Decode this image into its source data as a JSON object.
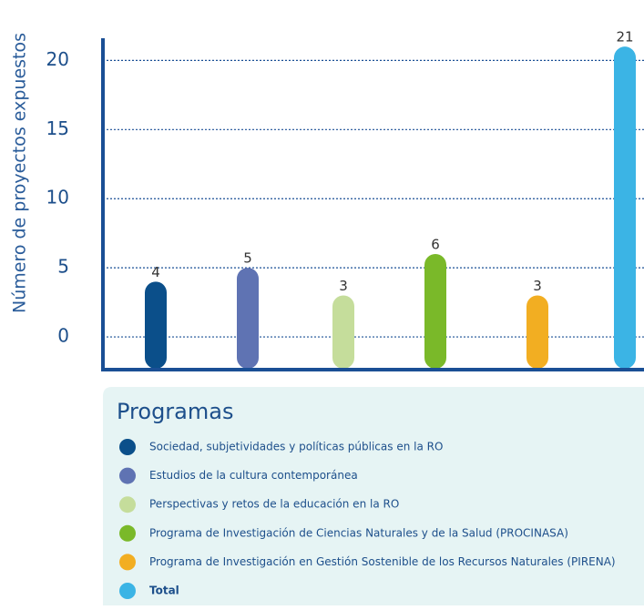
{
  "chart_data": {
    "type": "bar",
    "y_label": "Número de proyectos expuestos",
    "legend_title": "Programas",
    "categories": [
      "Sociedad, subjetividades y políticas públicas en la RO",
      "Estudios de la cultura contemporánea",
      "Perspectivas y retos de la educación en la RO",
      "Programa de Investigación de Ciencias Naturales y de la Salud (PROCINASA)",
      "Programa de Investigación en Gestión Sostenible de los Recursos Naturales (PIRENA)",
      "Total"
    ],
    "values": [
      4,
      5,
      3,
      6,
      3,
      21
    ],
    "colors": [
      "#0b4f8a",
      "#5f73b3",
      "#c5dd9b",
      "#7ab929",
      "#f2ae22",
      "#3bb4e5"
    ],
    "ylim": [
      -2.3,
      22
    ],
    "yticks": [
      0,
      5,
      10,
      15,
      20
    ],
    "grid": true
  }
}
